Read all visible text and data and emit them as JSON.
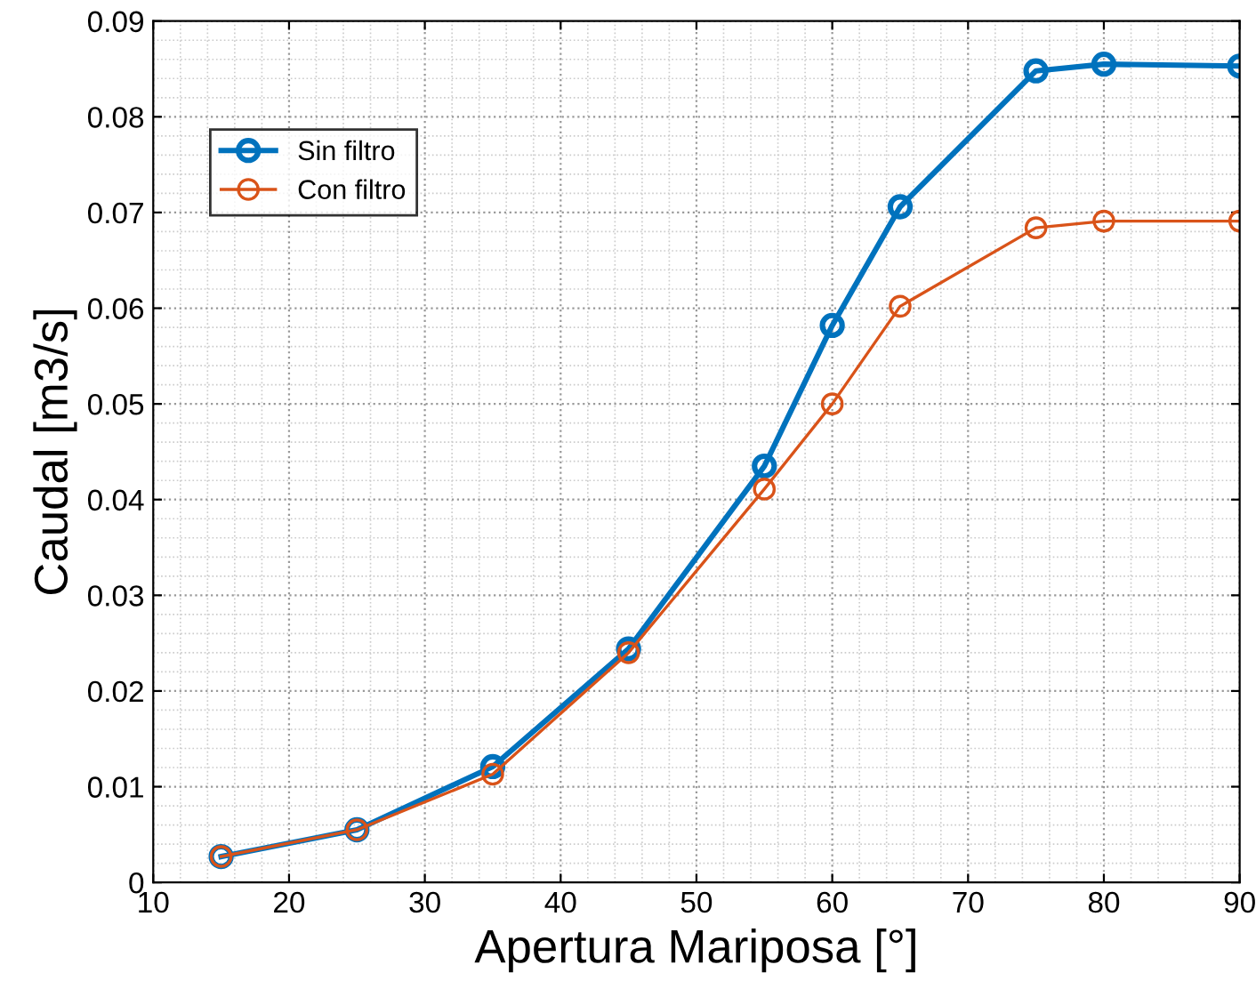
{
  "chart_data": {
    "type": "line",
    "xlabel": "Apertura Mariposa [°]",
    "ylabel": "Caudal [m3/s]",
    "x": [
      15,
      25,
      35,
      45,
      55,
      60,
      65,
      75,
      80,
      90
    ],
    "series": [
      {
        "name": "Sin filtro",
        "color": "#0072bd",
        "values": [
          0.0027,
          0.0055,
          0.0121,
          0.0244,
          0.0435,
          0.0582,
          0.0706,
          0.0848,
          0.0855,
          0.0853
        ]
      },
      {
        "name": "Con filtro",
        "color": "#d95319",
        "values": [
          0.0027,
          0.0055,
          0.0113,
          0.024,
          0.0411,
          0.05,
          0.0602,
          0.0684,
          0.0691,
          0.0691
        ]
      }
    ],
    "xlim": [
      10,
      90
    ],
    "xticks": [
      10,
      20,
      30,
      40,
      50,
      60,
      70,
      80,
      90
    ],
    "ylim": [
      0,
      0.09
    ],
    "yticks": [
      0,
      0.01,
      0.02,
      0.03,
      0.04,
      0.05,
      0.06,
      0.07,
      0.08,
      0.09
    ],
    "grid": true,
    "legend": "top left",
    "marker": "circle",
    "line_style": "solid"
  }
}
